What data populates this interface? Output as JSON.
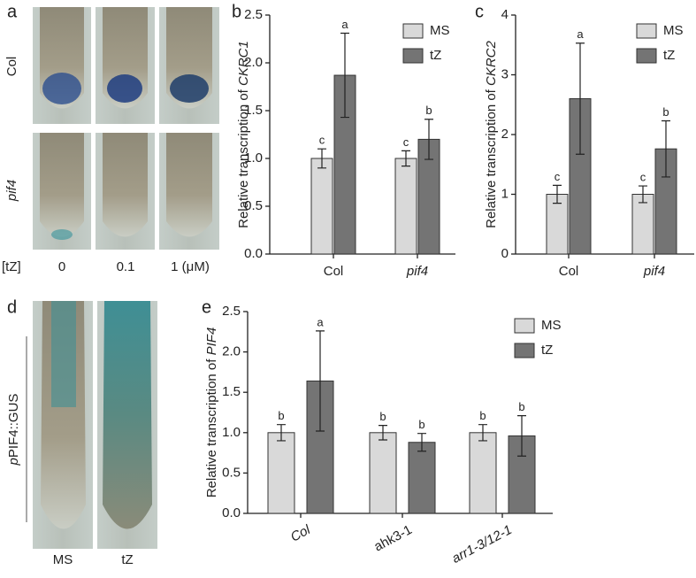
{
  "panel_labels": [
    "a",
    "b",
    "c",
    "d",
    "e"
  ],
  "images": {
    "a_rows": [
      "Col",
      "pif4"
    ],
    "a_treatment": "[tZ]",
    "a_doses": [
      "0",
      "0.1",
      "1 (μM)"
    ],
    "d_construct": [
      "p",
      "PIF4::GUS"
    ],
    "d_labels": [
      "MS",
      "tZ"
    ]
  },
  "chart_data": [
    {
      "type": "bar",
      "y_label": "Relative transcription of ",
      "y_label_italic": "CKRC1",
      "categories": [
        "Col",
        "pif4"
      ],
      "series": [
        {
          "name": "MS",
          "color": "#d9d9d9",
          "values": [
            1.0,
            1.0
          ],
          "errors": [
            0.1,
            0.08
          ],
          "letters": [
            "c",
            "c"
          ]
        },
        {
          "name": "tZ",
          "color": "#747474",
          "values": [
            1.87,
            1.2
          ],
          "errors": [
            0.44,
            0.21
          ],
          "letters": [
            "a",
            "b"
          ]
        }
      ],
      "ylim": [
        0,
        2.5
      ],
      "yticks": [
        {
          "value": 0,
          "label": "0.0"
        },
        {
          "value": 0.5,
          "label": "0.5"
        },
        {
          "value": 1,
          "label": "1.0"
        },
        {
          "value": 1.5,
          "label": "1.5"
        },
        {
          "value": 2,
          "label": "2.0"
        },
        {
          "value": 2.5,
          "label": "2.5"
        }
      ]
    },
    {
      "type": "bar",
      "y_label": "Relative transcription of ",
      "y_label_italic": "CKRC2",
      "categories": [
        "Col",
        "pif4"
      ],
      "series": [
        {
          "name": "MS",
          "color": "#d9d9d9",
          "values": [
            1.0,
            1.0
          ],
          "errors": [
            0.15,
            0.14
          ],
          "letters": [
            "c",
            "c"
          ]
        },
        {
          "name": "tZ",
          "color": "#747474",
          "values": [
            2.6,
            1.76
          ],
          "errors": [
            0.93,
            0.47
          ],
          "letters": [
            "a",
            "b"
          ]
        }
      ],
      "ylim": [
        0,
        4
      ],
      "yticks": [
        0,
        1,
        2,
        3,
        4
      ]
    },
    {
      "type": "bar",
      "y_label": "Relative transcription of ",
      "y_label_italic": "PIF4",
      "categories": [
        "Col",
        "ahk3-1",
        "arr1-3/12-1"
      ],
      "series": [
        {
          "name": "MS",
          "color": "#d9d9d9",
          "values": [
            1.0,
            1.0,
            1.0
          ],
          "errors": [
            0.1,
            0.09,
            0.1
          ],
          "letters": [
            "b",
            "b",
            "b"
          ]
        },
        {
          "name": "tZ",
          "color": "#747474",
          "values": [
            1.64,
            0.88,
            0.96
          ],
          "errors": [
            0.62,
            0.11,
            0.25
          ],
          "letters": [
            "a",
            "b",
            "b"
          ]
        }
      ],
      "ylim": [
        0,
        2.5
      ],
      "yticks": [
        {
          "value": 0,
          "label": "0.0"
        },
        {
          "value": 0.5,
          "label": "0.5"
        },
        {
          "value": 1,
          "label": "1.0"
        },
        {
          "value": 1.5,
          "label": "1.5"
        },
        {
          "value": 2,
          "label": "2.0"
        },
        {
          "value": 2.5,
          "label": "2.5"
        }
      ]
    }
  ]
}
